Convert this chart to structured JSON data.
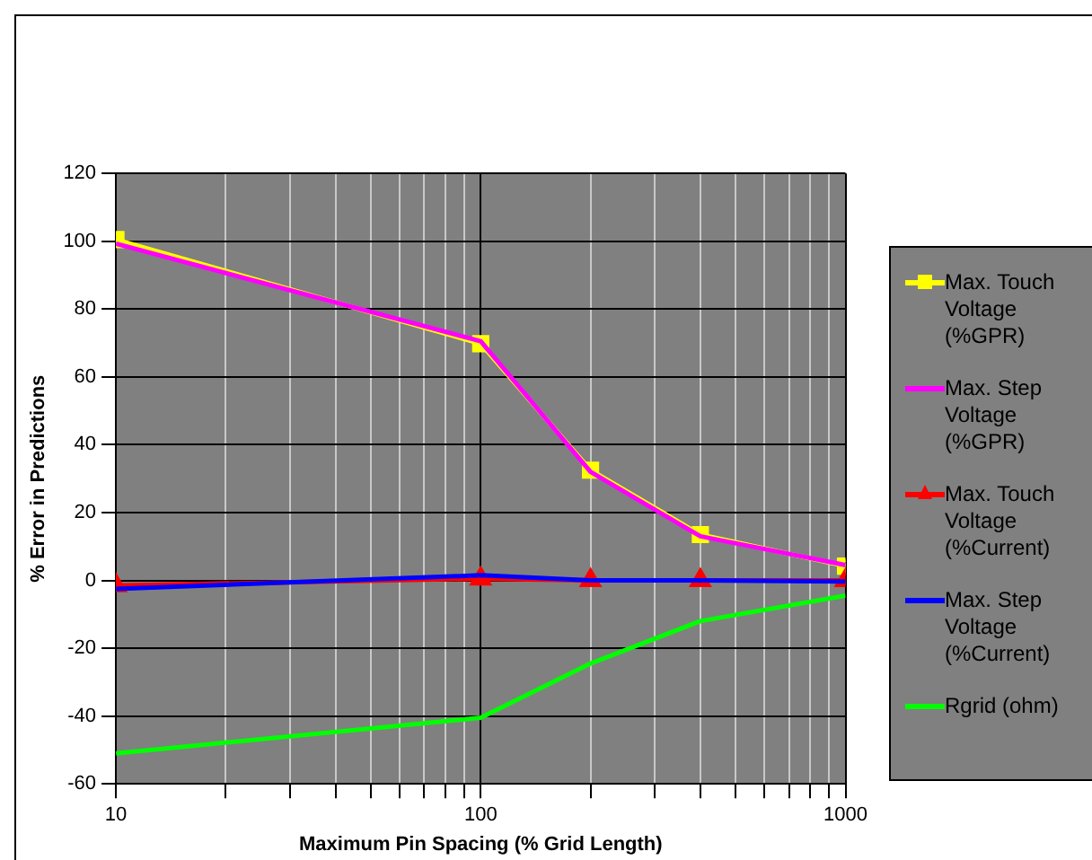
{
  "chart_data": {
    "type": "line",
    "xlabel": "Maximum Pin Spacing (% Grid Length)",
    "ylabel": "% Error in Predictions",
    "x": [
      10,
      100,
      200,
      400,
      1000
    ],
    "log": "x",
    "xlim": [
      10,
      1000
    ],
    "xticks": [
      10,
      100,
      1000
    ],
    "ylim": [
      -60,
      120
    ],
    "yticks": [
      -60,
      -40,
      -20,
      0,
      20,
      40,
      60,
      80,
      100,
      120
    ],
    "grid": true,
    "legend": "right",
    "series": [
      {
        "name": "Max. Touch Voltage (%GPR)",
        "color": "#ffff00",
        "marker": "square",
        "values": [
          100.5,
          69.8,
          32.5,
          13.5,
          4.2
        ]
      },
      {
        "name": "Max. Step Voltage (%GPR)",
        "color": "#ff00ff",
        "marker": "none",
        "values": [
          99.3,
          70.5,
          32,
          13,
          4.5
        ]
      },
      {
        "name": "Max. Touch Voltage (%Current)",
        "color": "#ff0000",
        "marker": "triangle",
        "values": [
          -1.5,
          0.5,
          0,
          0,
          0
        ]
      },
      {
        "name": "Max. Step Voltage (%Current)",
        "color": "#0000ff",
        "marker": "none",
        "values": [
          -2.5,
          1.5,
          0,
          0,
          -0.3
        ]
      },
      {
        "name": "Rgrid (ohm)",
        "color": "#00ff00",
        "marker": "none",
        "values": [
          -51,
          -40.5,
          -24.5,
          -12,
          -4.5
        ]
      }
    ]
  }
}
